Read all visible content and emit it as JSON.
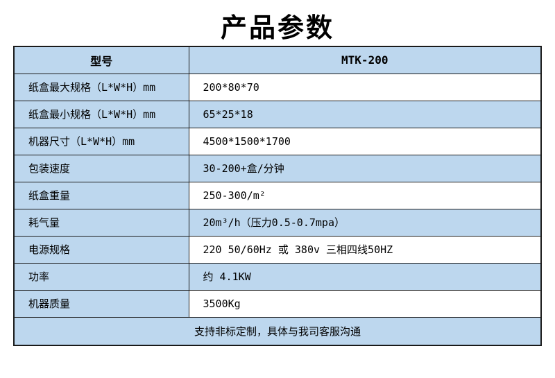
{
  "page": {
    "title": "产品参数"
  },
  "table": {
    "header": {
      "label": "型号",
      "value": "MTK-200"
    },
    "rows": [
      {
        "label": "纸盒最大规格（L*W*H）mm",
        "value": "200*80*70"
      },
      {
        "label": "纸盒最小规格（L*W*H）mm",
        "value": "65*25*18"
      },
      {
        "label": "机器尺寸（L*W*H）mm",
        "value": "4500*1500*1700"
      },
      {
        "label": "包装速度",
        "value": "30-200+盒/分钟"
      },
      {
        "label": "纸盒重量",
        "value": "250-300/m²"
      },
      {
        "label": "耗气量",
        "value": "20m³/h（压力0.5-0.7mpa）"
      },
      {
        "label": "电源规格",
        "value": "220 50/60Hz 或 380v 三相四线50HZ"
      },
      {
        "label": "功率",
        "value": "约 4.1KW"
      },
      {
        "label": "机器质量",
        "value": "3500Kg"
      }
    ],
    "footer": "支持非标定制，具体与我司客服沟通"
  },
  "colors": {
    "cell_blue": "#bdd7ee",
    "row_white": "#ffffff",
    "border": "#1a1a1a",
    "text": "#000000",
    "background": "#ffffff"
  }
}
